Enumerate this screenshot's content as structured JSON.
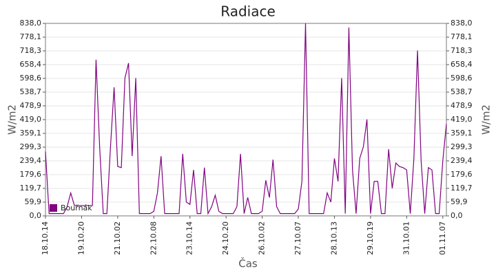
{
  "chart_data": {
    "type": "line",
    "title": "Radiace",
    "xlabel": "Čas",
    "ylabel": "W/m2",
    "y2label": "W/m2",
    "categories": [
      "18.10.14",
      null,
      null,
      null,
      null,
      null,
      null,
      null,
      null,
      null,
      "19.10.20",
      null,
      null,
      null,
      null,
      null,
      null,
      null,
      null,
      null,
      "21.10.02",
      null,
      null,
      null,
      null,
      null,
      null,
      null,
      null,
      null,
      "22.10.08",
      null,
      null,
      null,
      null,
      null,
      null,
      null,
      null,
      null,
      "23.10.14",
      null,
      null,
      null,
      null,
      null,
      null,
      null,
      null,
      null,
      "24.10.20",
      null,
      null,
      null,
      null,
      null,
      null,
      null,
      null,
      null,
      "26.10.02",
      null,
      null,
      null,
      null,
      null,
      null,
      null,
      null,
      null,
      "27.10.07",
      null,
      null,
      null,
      null,
      null,
      null,
      null,
      null,
      null,
      "28.10.13",
      null,
      null,
      null,
      null,
      null,
      null,
      null,
      null,
      null,
      "29.10.19",
      null,
      null,
      null,
      null,
      null,
      null,
      null,
      null,
      null,
      "31.10.01",
      null,
      null,
      null,
      null,
      null,
      null,
      null,
      null,
      null,
      "01.11.07",
      null
    ],
    "series": [
      {
        "name": "Bouřnák",
        "color": "#800080",
        "values": [
          280,
          10,
          10,
          10,
          10,
          10,
          40,
          100,
          45,
          45,
          45,
          45,
          45,
          45,
          680,
          300,
          10,
          10,
          300,
          560,
          215,
          210,
          600,
          665,
          260,
          600,
          10,
          10,
          10,
          10,
          20,
          100,
          260,
          10,
          10,
          10,
          10,
          10,
          270,
          60,
          50,
          200,
          10,
          10,
          210,
          10,
          40,
          90,
          20,
          10,
          10,
          10,
          10,
          40,
          270,
          10,
          80,
          10,
          10,
          10,
          20,
          155,
          80,
          245,
          40,
          10,
          10,
          10,
          10,
          10,
          30,
          150,
          838,
          10,
          10,
          10,
          10,
          10,
          100,
          60,
          250,
          150,
          600,
          10,
          820,
          200,
          10,
          250,
          300,
          420,
          10,
          150,
          150,
          10,
          10,
          290,
          120,
          230,
          215,
          210,
          200,
          10,
          250,
          720,
          240,
          10,
          210,
          200,
          10,
          10,
          240,
          400
        ]
      }
    ],
    "ylim": [
      0,
      838
    ],
    "yticks": [
      {
        "value": 0,
        "label": "0,0"
      },
      {
        "value": 59.9,
        "label": "59,9"
      },
      {
        "value": 119.7,
        "label": "119,7"
      },
      {
        "value": 179.6,
        "label": "179,6"
      },
      {
        "value": 239.4,
        "label": "239,4"
      },
      {
        "value": 299.3,
        "label": "299,3"
      },
      {
        "value": 359.1,
        "label": "359,1"
      },
      {
        "value": 419.0,
        "label": "419,0"
      },
      {
        "value": 478.9,
        "label": "478,9"
      },
      {
        "value": 538.7,
        "label": "538,7"
      },
      {
        "value": 598.6,
        "label": "598,6"
      },
      {
        "value": 658.4,
        "label": "658,4"
      },
      {
        "value": 718.3,
        "label": "718,3"
      },
      {
        "value": 778.1,
        "label": "778,1"
      },
      {
        "value": 838.0,
        "label": "838,0"
      }
    ],
    "y2lim": [
      0,
      838
    ],
    "y2ticks": [
      {
        "value": 0,
        "label": "0,0"
      },
      {
        "value": 59.9,
        "label": "59,9"
      },
      {
        "value": 119.7,
        "label": "119,7"
      },
      {
        "value": 179.6,
        "label": "179,6"
      },
      {
        "value": 239.4,
        "label": "239,4"
      },
      {
        "value": 299.3,
        "label": "299,3"
      },
      {
        "value": 359.1,
        "label": "359,1"
      },
      {
        "value": 419.0,
        "label": "419,0"
      },
      {
        "value": 478.9,
        "label": "478,9"
      },
      {
        "value": 538.7,
        "label": "538,7"
      },
      {
        "value": 598.6,
        "label": "598,6"
      },
      {
        "value": 658.4,
        "label": "658,4"
      },
      {
        "value": 718.3,
        "label": "718,3"
      },
      {
        "value": 778.1,
        "label": "778,1"
      },
      {
        "value": 838.0,
        "label": "838,0"
      }
    ],
    "grid": true,
    "legend": "lower-left"
  }
}
